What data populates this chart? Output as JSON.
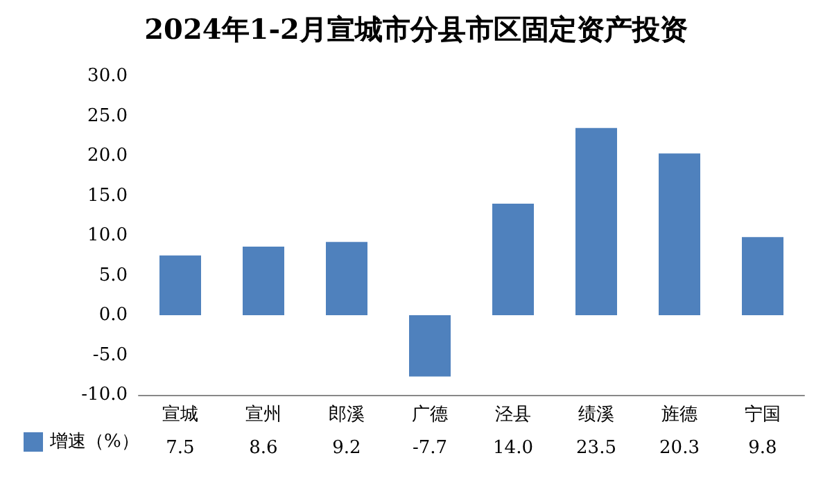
{
  "chart_data": {
    "type": "bar",
    "title": "2024年1-2月宣城市分县市区固定资产投资",
    "categories": [
      "宣城",
      "宣州",
      "郎溪",
      "广德",
      "泾县",
      "绩溪",
      "旌德",
      "宁国"
    ],
    "series": [
      {
        "name": "增速（%）",
        "color": "#4f81bd",
        "values": [
          7.5,
          8.6,
          9.2,
          -7.7,
          14.0,
          23.5,
          20.3,
          9.8
        ],
        "value_labels": [
          "7.5",
          "8.6",
          "9.2",
          "-7.7",
          "14.0",
          "23.5",
          "20.3",
          "9.8"
        ]
      }
    ],
    "ylim": [
      -10,
      30
    ],
    "yticks": [
      {
        "value": -10,
        "label": "-10.0"
      },
      {
        "value": -5,
        "label": "-5.0"
      },
      {
        "value": 0,
        "label": "0.0"
      },
      {
        "value": 5,
        "label": "5.0"
      },
      {
        "value": 10,
        "label": "10.0"
      },
      {
        "value": 15,
        "label": "15.0"
      },
      {
        "value": 20,
        "label": "20.0"
      },
      {
        "value": 25,
        "label": "25.0"
      },
      {
        "value": 30,
        "label": "30.0"
      }
    ],
    "grid": false,
    "legend": "bottom left"
  }
}
